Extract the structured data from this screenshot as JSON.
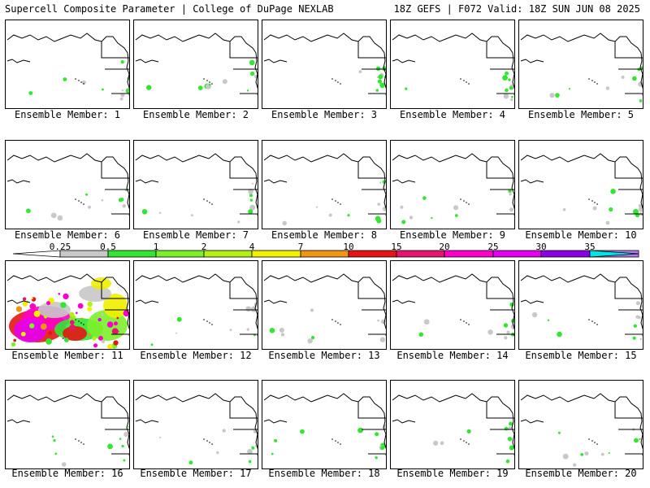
{
  "header": {
    "left": "Supercell Composite Parameter | College of DuPage NEXLAB",
    "right": "18Z GEFS | F072 Valid: 18Z SUN JUN 08 2025"
  },
  "panels": [
    {
      "label": "Ensemble Member: 1",
      "intensity": "low"
    },
    {
      "label": "Ensemble Member: 2",
      "intensity": "low"
    },
    {
      "label": "Ensemble Member: 3",
      "intensity": "low"
    },
    {
      "label": "Ensemble Member: 4",
      "intensity": "low"
    },
    {
      "label": "Ensemble Member: 5",
      "intensity": "low"
    },
    {
      "label": "Ensemble Member: 6",
      "intensity": "low"
    },
    {
      "label": "Ensemble Member: 7",
      "intensity": "low"
    },
    {
      "label": "Ensemble Member: 8",
      "intensity": "low"
    },
    {
      "label": "Ensemble Member: 9",
      "intensity": "low"
    },
    {
      "label": "Ensemble Member: 10",
      "intensity": "low"
    },
    {
      "label": "Ensemble Member: 11",
      "intensity": "high"
    },
    {
      "label": "Ensemble Member: 12",
      "intensity": "low"
    },
    {
      "label": "Ensemble Member: 13",
      "intensity": "low"
    },
    {
      "label": "Ensemble Member: 14",
      "intensity": "low"
    },
    {
      "label": "Ensemble Member: 15",
      "intensity": "low"
    },
    {
      "label": "Ensemble Member: 16",
      "intensity": "low"
    },
    {
      "label": "Ensemble Member: 17",
      "intensity": "low"
    },
    {
      "label": "Ensemble Member: 18",
      "intensity": "low"
    },
    {
      "label": "Ensemble Member: 19",
      "intensity": "low"
    },
    {
      "label": "Ensemble Member: 20",
      "intensity": "low"
    }
  ],
  "colorbar": {
    "ticks": [
      "0.25",
      "0.5",
      "1",
      "2",
      "4",
      "7",
      "10",
      "15",
      "20",
      "25",
      "30",
      "35"
    ],
    "colors": [
      "#c8c8c8",
      "#32e632",
      "#7cf02a",
      "#b4f014",
      "#f0f000",
      "#f09614",
      "#e61414",
      "#e6146e",
      "#ff00c8",
      "#e600f0",
      "#8c00e6",
      "#b478f0",
      "#00e6e6"
    ]
  }
}
